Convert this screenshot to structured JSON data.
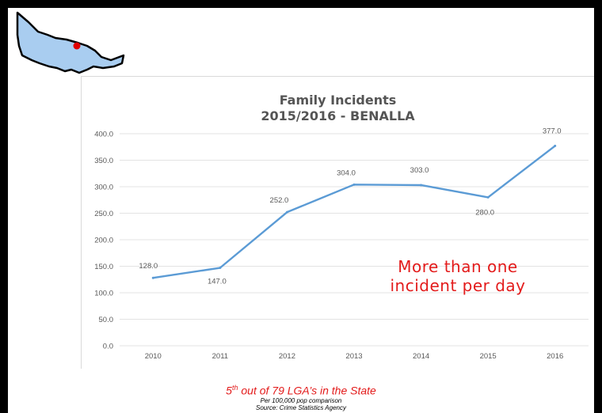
{
  "chart_data": {
    "type": "line",
    "title": "Family Incidents",
    "subtitle": "2015/2016 - BENALLA",
    "categories": [
      "2010",
      "2011",
      "2012",
      "2013",
      "2014",
      "2015",
      "2016"
    ],
    "series": [
      {
        "values": [
          128.0,
          147.0,
          252.0,
          304.0,
          303.0,
          280.0,
          377.0
        ]
      }
    ],
    "data_labels": [
      "128.0",
      "147.0",
      "252.0",
      "304.0",
      "303.0",
      "280.0",
      "377.0"
    ],
    "y_ticks": [
      "0.0",
      "50.0",
      "100.0",
      "150.0",
      "200.0",
      "250.0",
      "300.0",
      "350.0",
      "400.0"
    ],
    "ylim": [
      0,
      400
    ],
    "grid": true,
    "line_color": "#5b9bd5"
  },
  "callout": {
    "line1": "More than one",
    "line2": "incident per day"
  },
  "footer": {
    "rank_num": "5",
    "rank_sup": "th",
    "rank_rest": " out of 79 LGA’s in the State",
    "note1": "Per 100,000 pop comparison",
    "note2": "Source: Crime Statistics Agency"
  },
  "colors": {
    "accent_red": "#e31b1b",
    "map_fill": "#a9cdf0",
    "marker": "#e00000"
  }
}
